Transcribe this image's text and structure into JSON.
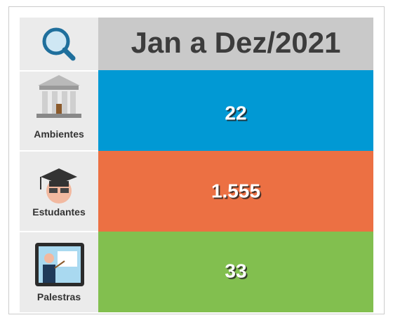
{
  "header": {
    "title": "Jan a Dez/2021"
  },
  "rows": [
    {
      "label": "Ambientes",
      "value": "22"
    },
    {
      "label": "Estudantes",
      "value": "1.555"
    },
    {
      "label": "Palestras",
      "value": "33"
    }
  ]
}
